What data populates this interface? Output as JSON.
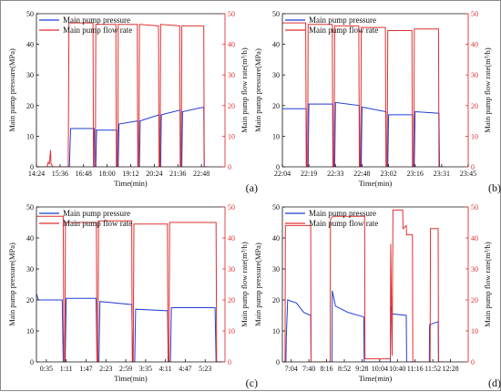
{
  "colors": {
    "pressure": "#1f3fd6",
    "flow": "#e03030",
    "axis": "#111111"
  },
  "chart_data": [
    {
      "type": "line",
      "panel_label": "(a)",
      "xlabel": "Time(min)",
      "ylabel_left": "Main pump pressure(MPa)",
      "ylabel_right": "Main pump flow rate(m³/h)",
      "left_ylim": [
        0,
        50
      ],
      "right_ylim": [
        0,
        50
      ],
      "left_yticks": [
        "0",
        "10",
        "20",
        "30",
        "40",
        "50"
      ],
      "right_yticks": [
        "0",
        "10",
        "20",
        "30",
        "40",
        "50"
      ],
      "xlim": [
        0,
        8
      ],
      "xticks": [
        {
          "x": 0,
          "label": "14:24"
        },
        {
          "x": 1,
          "label": "15:36"
        },
        {
          "x": 2,
          "label": "16:48"
        },
        {
          "x": 3,
          "label": "18:00"
        },
        {
          "x": 4,
          "label": "19:12"
        },
        {
          "x": 5,
          "label": "20:24"
        },
        {
          "x": 6,
          "label": "21:36"
        },
        {
          "x": 7,
          "label": "22:48"
        }
      ],
      "legend": [
        "Main pump pressure",
        "Main pump flow rate"
      ],
      "series": [
        {
          "name": "Main pump pressure",
          "axis": "left",
          "points": [
            [
              0,
              0
            ],
            [
              1.4,
              0
            ],
            [
              1.45,
              12.5
            ],
            [
              2.45,
              12.5
            ],
            [
              2.47,
              0
            ],
            [
              2.52,
              0
            ],
            [
              2.55,
              12
            ],
            [
              3.4,
              12
            ],
            [
              3.42,
              0
            ],
            [
              3.47,
              0
            ],
            [
              3.5,
              14
            ],
            [
              4.3,
              15
            ],
            [
              4.32,
              0
            ],
            [
              4.37,
              0
            ],
            [
              4.4,
              15
            ],
            [
              5.2,
              17
            ],
            [
              5.22,
              0
            ],
            [
              5.27,
              0
            ],
            [
              5.3,
              17
            ],
            [
              6.1,
              18.5
            ],
            [
              6.12,
              0
            ],
            [
              6.17,
              0
            ],
            [
              6.2,
              18
            ],
            [
              7.1,
              19.5
            ],
            [
              7.12,
              0
            ],
            [
              7.3,
              0
            ]
          ]
        },
        {
          "name": "Main pump flow rate",
          "axis": "right",
          "points": [
            [
              0,
              0
            ],
            [
              0.45,
              0
            ],
            [
              0.5,
              1.5
            ],
            [
              0.55,
              1
            ],
            [
              0.6,
              5.5
            ],
            [
              0.62,
              1
            ],
            [
              0.7,
              0
            ],
            [
              1.35,
              0
            ],
            [
              1.38,
              47
            ],
            [
              2.4,
              47
            ],
            [
              2.42,
              0
            ],
            [
              2.5,
              0
            ],
            [
              2.52,
              46.5
            ],
            [
              3.37,
              46.5
            ],
            [
              3.39,
              0
            ],
            [
              3.45,
              0
            ],
            [
              3.47,
              46.5
            ],
            [
              4.28,
              46.5
            ],
            [
              4.3,
              0
            ],
            [
              4.35,
              0
            ],
            [
              4.37,
              46.5
            ],
            [
              5.18,
              46
            ],
            [
              5.2,
              0
            ],
            [
              5.25,
              0
            ],
            [
              5.27,
              46.5
            ],
            [
              6.08,
              46
            ],
            [
              6.1,
              0
            ],
            [
              6.15,
              0
            ],
            [
              6.17,
              46
            ],
            [
              7.1,
              46
            ],
            [
              7.12,
              0
            ],
            [
              7.3,
              0
            ]
          ]
        }
      ]
    },
    {
      "type": "line",
      "panel_label": "(b)",
      "xlabel": "Time(min)",
      "ylabel_left": "Main pump pressure(MPa)",
      "ylabel_right": "Main pump flow rate(m³/h)",
      "left_ylim": [
        0,
        50
      ],
      "right_ylim": [
        0,
        50
      ],
      "left_yticks": [
        "0",
        "10",
        "20",
        "30",
        "40",
        "50"
      ],
      "right_yticks": [
        "0",
        "10",
        "20",
        "30",
        "40",
        "50"
      ],
      "xlim": [
        0,
        7
      ],
      "xticks": [
        {
          "x": 0,
          "label": "22:04"
        },
        {
          "x": 1,
          "label": "22:19"
        },
        {
          "x": 2,
          "label": "22:33"
        },
        {
          "x": 3,
          "label": "22:48"
        },
        {
          "x": 4,
          "label": "23:02"
        },
        {
          "x": 5,
          "label": "23:16"
        },
        {
          "x": 6,
          "label": "23:31"
        },
        {
          "x": 7,
          "label": "23:45"
        }
      ],
      "legend": [
        "Main pump pressure",
        "Main pump flow rate"
      ],
      "series": [
        {
          "name": "Main pump pressure",
          "axis": "left",
          "points": [
            [
              -0.6,
              0
            ],
            [
              -0.3,
              0
            ],
            [
              -0.25,
              19
            ],
            [
              0.9,
              19
            ],
            [
              0.92,
              0
            ],
            [
              0.97,
              0
            ],
            [
              1.0,
              20.5
            ],
            [
              1.9,
              20.5
            ],
            [
              1.92,
              0
            ],
            [
              1.97,
              0
            ],
            [
              2.0,
              21
            ],
            [
              2.9,
              20
            ],
            [
              2.92,
              0
            ],
            [
              2.97,
              0
            ],
            [
              3.0,
              19.5
            ],
            [
              3.9,
              18
            ],
            [
              3.92,
              0
            ],
            [
              3.97,
              0
            ],
            [
              4.0,
              17
            ],
            [
              4.9,
              17
            ],
            [
              4.92,
              0
            ],
            [
              4.97,
              0
            ],
            [
              5.0,
              18
            ],
            [
              5.9,
              17.5
            ],
            [
              5.92,
              0
            ],
            [
              6.1,
              0
            ]
          ]
        },
        {
          "name": "Main pump flow rate",
          "axis": "right",
          "points": [
            [
              -0.6,
              0
            ],
            [
              -0.35,
              0
            ],
            [
              -0.33,
              47
            ],
            [
              0.88,
              47
            ],
            [
              0.9,
              0
            ],
            [
              0.95,
              0
            ],
            [
              0.97,
              46.5
            ],
            [
              1.88,
              46.5
            ],
            [
              1.9,
              0
            ],
            [
              1.95,
              0
            ],
            [
              1.97,
              46
            ],
            [
              2.88,
              46
            ],
            [
              2.9,
              0
            ],
            [
              2.95,
              0
            ],
            [
              2.97,
              45.5
            ],
            [
              3.88,
              45.5
            ],
            [
              3.9,
              0
            ],
            [
              3.95,
              0
            ],
            [
              3.97,
              44.5
            ],
            [
              4.88,
              44.5
            ],
            [
              4.9,
              0
            ],
            [
              4.95,
              0
            ],
            [
              4.97,
              45
            ],
            [
              5.88,
              45
            ],
            [
              5.9,
              0
            ],
            [
              6.1,
              0
            ]
          ]
        }
      ]
    },
    {
      "type": "line",
      "panel_label": "(c)",
      "xlabel": "Time(min)",
      "ylabel_left": "Main pump pressure(MPa)",
      "ylabel_right": "Main pump flow rate(m³/h)",
      "left_ylim": [
        0,
        50
      ],
      "right_ylim": [
        0,
        50
      ],
      "left_yticks": [
        "0",
        "10",
        "20",
        "30",
        "40",
        "50"
      ],
      "right_yticks": [
        "0",
        "10",
        "20",
        "30",
        "40",
        "50"
      ],
      "xlim": [
        -0.5,
        9
      ],
      "xticks": [
        {
          "x": 0,
          "label": "0:35"
        },
        {
          "x": 1,
          "label": "1:11"
        },
        {
          "x": 2,
          "label": "1:47"
        },
        {
          "x": 3,
          "label": "2:23"
        },
        {
          "x": 4,
          "label": "2:59"
        },
        {
          "x": 5,
          "label": "3:35"
        },
        {
          "x": 6,
          "label": "4:11"
        },
        {
          "x": 7,
          "label": "4:47"
        },
        {
          "x": 8,
          "label": "5:23"
        }
      ],
      "legend": [
        "Main pump pressure",
        "Main pump flow rate"
      ],
      "series": [
        {
          "name": "Main pump pressure",
          "axis": "left",
          "points": [
            [
              -0.5,
              22
            ],
            [
              -0.4,
              20
            ],
            [
              0.8,
              20
            ],
            [
              0.85,
              0
            ],
            [
              0.95,
              0
            ],
            [
              1.0,
              20.5
            ],
            [
              2.5,
              20.5
            ],
            [
              2.55,
              0
            ],
            [
              2.65,
              0
            ],
            [
              2.7,
              19.5
            ],
            [
              4.3,
              18.5
            ],
            [
              4.35,
              0
            ],
            [
              4.45,
              0
            ],
            [
              4.5,
              17
            ],
            [
              6.1,
              16.5
            ],
            [
              6.15,
              0
            ],
            [
              6.25,
              0
            ],
            [
              6.3,
              17.5
            ],
            [
              8.5,
              17.5
            ],
            [
              8.55,
              0
            ],
            [
              9,
              0
            ]
          ]
        },
        {
          "name": "Main pump flow rate",
          "axis": "right",
          "points": [
            [
              -0.5,
              47
            ],
            [
              0.85,
              47
            ],
            [
              0.88,
              0
            ],
            [
              0.93,
              0
            ],
            [
              0.96,
              45
            ],
            [
              2.52,
              45
            ],
            [
              2.55,
              0
            ],
            [
              2.6,
              0
            ],
            [
              2.63,
              45.5
            ],
            [
              4.3,
              45.5
            ],
            [
              4.33,
              0
            ],
            [
              4.38,
              0
            ],
            [
              4.41,
              44.5
            ],
            [
              6.1,
              44.5
            ],
            [
              6.13,
              0
            ],
            [
              6.18,
              0
            ],
            [
              6.21,
              45
            ],
            [
              8.55,
              45
            ],
            [
              8.58,
              0
            ],
            [
              9,
              0
            ]
          ]
        }
      ]
    },
    {
      "type": "line",
      "panel_label": "(d)",
      "xlabel": "Time(min)",
      "ylabel_left": "Main pump pressure(MPa)",
      "ylabel_right": "Main pump flow rate(m³/h)",
      "left_ylim": [
        0,
        50
      ],
      "right_ylim": [
        0,
        50
      ],
      "left_yticks": [
        "0",
        "10",
        "20",
        "30",
        "40",
        "50"
      ],
      "right_yticks": [
        "0",
        "10",
        "20",
        "30",
        "40",
        "50"
      ],
      "xlim": [
        -0.5,
        10
      ],
      "xticks": [
        {
          "x": 0,
          "label": "7:04"
        },
        {
          "x": 1,
          "label": "7:40"
        },
        {
          "x": 2,
          "label": "8:16"
        },
        {
          "x": 3,
          "label": "8:52"
        },
        {
          "x": 4,
          "label": "9:28"
        },
        {
          "x": 5,
          "label": "10:04"
        },
        {
          "x": 6,
          "label": "10:40"
        },
        {
          "x": 7,
          "label": "11:16"
        },
        {
          "x": 8,
          "label": "11:52"
        },
        {
          "x": 9,
          "label": "12:28"
        }
      ],
      "legend": [
        "Main pump pressure",
        "Main pump flow rate"
      ],
      "series": [
        {
          "name": "Main pump pressure",
          "axis": "left",
          "points": [
            [
              -0.5,
              0
            ],
            [
              -0.3,
              0
            ],
            [
              -0.28,
              8
            ],
            [
              -0.2,
              20
            ],
            [
              0.3,
              19
            ],
            [
              0.7,
              16
            ],
            [
              1.1,
              15
            ],
            [
              1.12,
              0
            ],
            [
              2.3,
              0
            ],
            [
              2.32,
              23
            ],
            [
              2.5,
              18
            ],
            [
              3.2,
              16
            ],
            [
              4.1,
              14.5
            ],
            [
              4.12,
              0
            ],
            [
              5.6,
              0
            ],
            [
              5.62,
              18
            ],
            [
              5.7,
              15.5
            ],
            [
              6.5,
              15
            ],
            [
              6.52,
              0
            ],
            [
              7.8,
              0
            ],
            [
              7.82,
              12
            ],
            [
              8.3,
              13
            ],
            [
              8.32,
              0
            ],
            [
              9,
              0
            ]
          ]
        },
        {
          "name": "Main pump flow rate",
          "axis": "right",
          "points": [
            [
              -0.5,
              0
            ],
            [
              -0.35,
              0
            ],
            [
              -0.33,
              44
            ],
            [
              1.1,
              44
            ],
            [
              1.12,
              0
            ],
            [
              2.2,
              0
            ],
            [
              2.22,
              46
            ],
            [
              2.35,
              47
            ],
            [
              4.15,
              47
            ],
            [
              4.17,
              1
            ],
            [
              5.6,
              1
            ],
            [
              5.62,
              38
            ],
            [
              5.7,
              2
            ],
            [
              5.75,
              49
            ],
            [
              6.3,
              49
            ],
            [
              6.32,
              43
            ],
            [
              6.5,
              44
            ],
            [
              6.52,
              41
            ],
            [
              6.85,
              41
            ],
            [
              6.87,
              0
            ],
            [
              7.85,
              0
            ],
            [
              7.87,
              43
            ],
            [
              8.3,
              43
            ],
            [
              8.32,
              0
            ],
            [
              9,
              0
            ]
          ]
        }
      ]
    }
  ]
}
